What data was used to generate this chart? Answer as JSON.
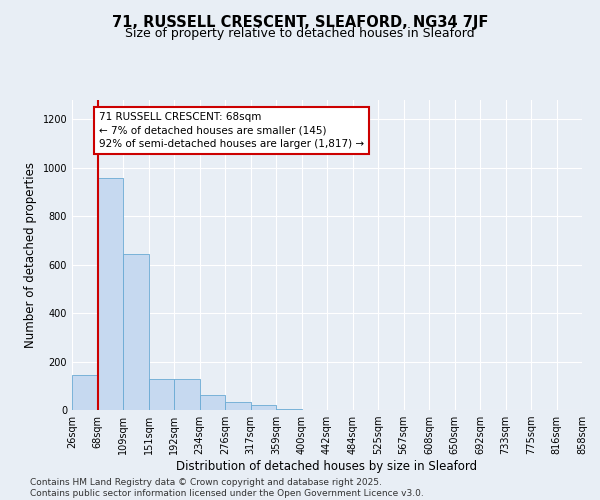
{
  "title": "71, RUSSELL CRESCENT, SLEAFORD, NG34 7JF",
  "subtitle": "Size of property relative to detached houses in Sleaford",
  "xlabel": "Distribution of detached houses by size in Sleaford",
  "ylabel": "Number of detached properties",
  "footer": "Contains HM Land Registry data © Crown copyright and database right 2025.\nContains public sector information licensed under the Open Government Licence v3.0.",
  "bin_labels": [
    "26sqm",
    "68sqm",
    "109sqm",
    "151sqm",
    "192sqm",
    "234sqm",
    "276sqm",
    "317sqm",
    "359sqm",
    "400sqm",
    "442sqm",
    "484sqm",
    "525sqm",
    "567sqm",
    "608sqm",
    "650sqm",
    "692sqm",
    "733sqm",
    "775sqm",
    "816sqm",
    "858sqm"
  ],
  "bar_values": [
    145,
    960,
    645,
    130,
    130,
    60,
    35,
    20,
    5,
    0,
    0,
    0,
    0,
    0,
    0,
    0,
    0,
    0,
    0,
    0
  ],
  "bar_color": "#c6d9f0",
  "bar_edge_color": "#6aaad4",
  "vline_position": 1,
  "vline_color": "#cc0000",
  "ylim": [
    0,
    1280
  ],
  "yticks": [
    0,
    200,
    400,
    600,
    800,
    1000,
    1200
  ],
  "annotation_text": "71 RUSSELL CRESCENT: 68sqm\n← 7% of detached houses are smaller (145)\n92% of semi-detached houses are larger (1,817) →",
  "annotation_color": "#cc0000",
  "background_color": "#e8eef5",
  "plot_bg_color": "#e8eef5",
  "grid_color": "#d0d8e8",
  "title_fontsize": 10.5,
  "subtitle_fontsize": 9,
  "axis_label_fontsize": 8.5,
  "tick_fontsize": 7,
  "annotation_fontsize": 7.5,
  "footer_fontsize": 6.5
}
